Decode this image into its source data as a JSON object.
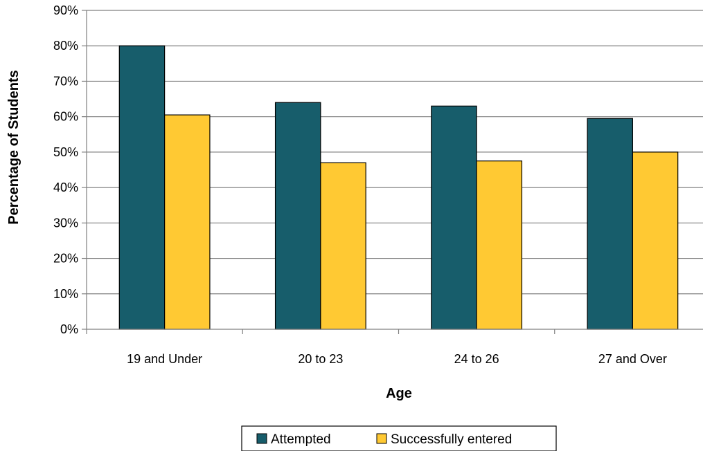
{
  "chart_data": {
    "type": "bar",
    "title": "",
    "xlabel": "Age",
    "ylabel": "Percentage of Students",
    "categories": [
      "19 and Under",
      "20 to 23",
      "24 to 26",
      "27 and Over"
    ],
    "series": [
      {
        "name": "Attempted",
        "values": [
          80,
          64,
          63,
          59.5
        ],
        "color": "#175d6b"
      },
      {
        "name": "Successfully entered",
        "values": [
          60.5,
          47,
          47.5,
          50
        ],
        "color": "#ffc933"
      }
    ],
    "ylim": [
      0,
      90
    ],
    "yticks": [
      0,
      10,
      20,
      30,
      40,
      50,
      60,
      70,
      80,
      90
    ],
    "ytick_labels": [
      "0%",
      "10%",
      "20%",
      "30%",
      "40%",
      "50%",
      "60%",
      "70%",
      "80%",
      "90%"
    ],
    "grid": true,
    "legend_position": "bottom"
  }
}
